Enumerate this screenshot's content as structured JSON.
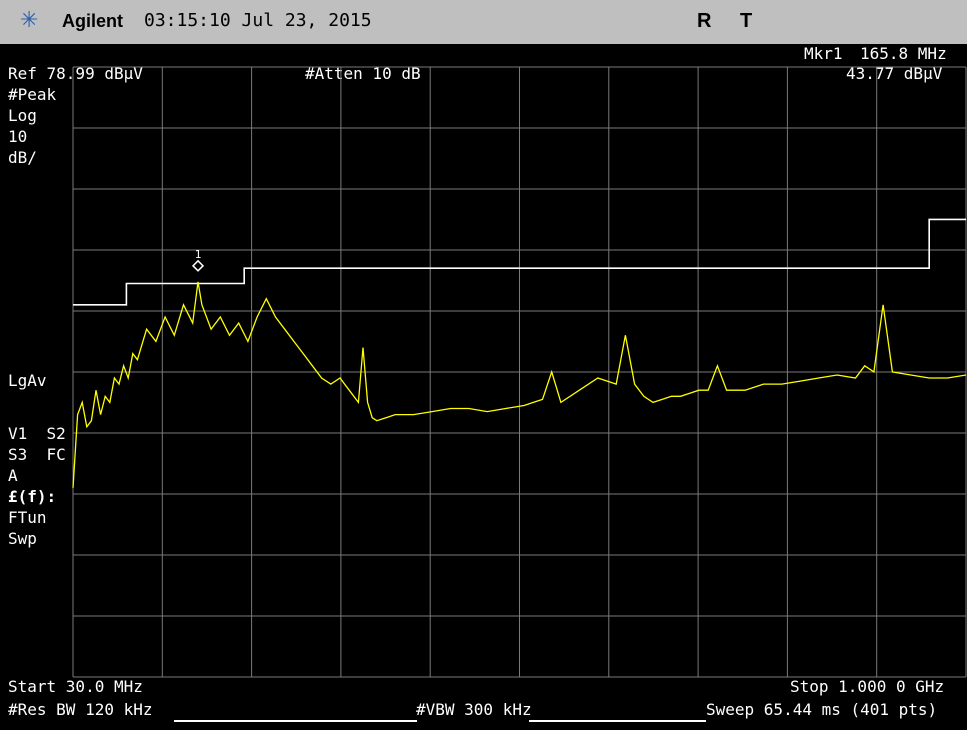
{
  "titlebar": {
    "logo_icon": "agilent-spark-icon",
    "brand": "Agilent",
    "datetime": "03:15:10  Jul 23, 2015",
    "flag_r": "R",
    "flag_t": "T"
  },
  "header": {
    "marker_name": "Mkr1",
    "marker_freq": "165.8 MHz",
    "ref_level": "Ref 78.99 dBµV",
    "atten": "#Atten 10 dB",
    "marker_amp": "43.77 dBµV"
  },
  "left_panel": {
    "detector": "#Peak",
    "scale_type": "Log",
    "scale_value": "10",
    "scale_unit": "dB/",
    "avg": "LgAv",
    "traces_1": "V1  S2",
    "traces_2": "S3  FC",
    "trace_a": "A",
    "fcorr": "£(f):",
    "ftun": "FTun",
    "swp": "Swp"
  },
  "footer": {
    "start": "Start 30.0 MHz",
    "stop": "Stop 1.000 0 GHz",
    "rbw": "#Res BW 120 kHz",
    "vbw": "#VBW 300 kHz",
    "sweep": "Sweep 65.44 ms (401 pts)"
  },
  "marker": {
    "label": "1"
  },
  "colors": {
    "trace": "#ffff00",
    "limit_line": "#ffffff",
    "grid": "#7a7a7a",
    "titlebar_bg": "#bfbfbf"
  },
  "chart_data": {
    "type": "line",
    "x_range_mhz": [
      30,
      1000
    ],
    "ref_level_dbuv": 78.99,
    "scale_db_per_div": 10,
    "y_divisions": 10,
    "x_divisions": 10,
    "grid": true,
    "marker": {
      "name": "Mkr1",
      "x_mhz": 165.8,
      "y_dbuv": 43.77
    },
    "limit_line": {
      "x_mhz": [
        30,
        88,
        88,
        216,
        216,
        960,
        960,
        1000
      ],
      "y_dbuv": [
        40,
        40,
        43.5,
        43.5,
        46,
        46,
        54,
        54
      ]
    },
    "series": [
      {
        "x_mhz": [
          30,
          35,
          40,
          45,
          50,
          55,
          60,
          65,
          70,
          75,
          80,
          85,
          90,
          95,
          100,
          110,
          120,
          130,
          140,
          150,
          160,
          165.8,
          170,
          180,
          190,
          200,
          210,
          220,
          230,
          240,
          250,
          260,
          270,
          280,
          290,
          300,
          310,
          320,
          330,
          340,
          345,
          350,
          355,
          360,
          370,
          380,
          400,
          420,
          440,
          460,
          480,
          500,
          520,
          530,
          540,
          550,
          560,
          580,
          600,
          620,
          630,
          640,
          650,
          660,
          670,
          680,
          690,
          700,
          710,
          720,
          730,
          740,
          760,
          780,
          800,
          820,
          840,
          860,
          880,
          890,
          900,
          910,
          920,
          940,
          960,
          980,
          1000
        ],
        "y_dbuv": [
          10,
          22,
          24,
          20,
          21,
          26,
          22,
          25,
          24,
          28,
          27,
          30,
          28,
          32,
          31,
          36,
          34,
          38,
          35,
          40,
          37,
          43.77,
          40,
          36,
          38,
          35,
          37,
          34,
          38,
          41,
          38,
          36,
          34,
          32,
          30,
          28,
          27,
          28,
          26,
          24,
          33,
          24,
          21.5,
          21,
          21.5,
          22,
          22,
          22.5,
          23,
          23,
          22.5,
          23,
          23.5,
          24,
          24.5,
          29,
          24,
          26,
          28,
          27,
          35,
          27,
          25,
          24,
          24.5,
          25,
          25,
          25.5,
          26,
          26,
          30,
          26,
          26,
          27,
          27,
          27.5,
          28,
          28.5,
          28,
          30,
          29,
          40,
          29,
          28.5,
          28,
          28,
          28.5
        ]
      }
    ]
  }
}
